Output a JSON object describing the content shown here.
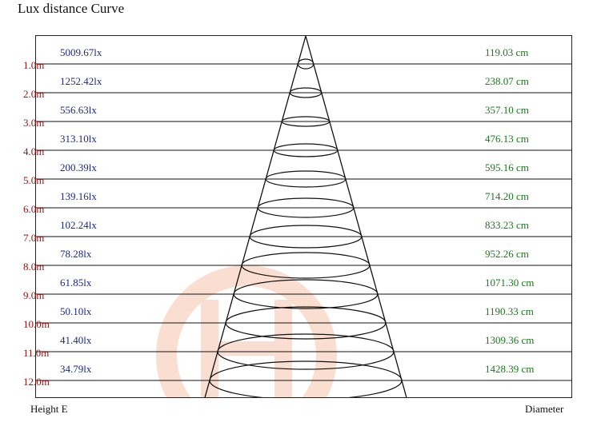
{
  "title": "Lux distance Curve",
  "footer": {
    "left_label": "Height  E",
    "right_label": "Diameter"
  },
  "colors": {
    "lux_text": "#1c2a86",
    "diameter_text": "#1b7a1b",
    "height_text": "#9c1010",
    "lines": "#111111",
    "watermark": "#f3b89a"
  },
  "chart_data": {
    "type": "table",
    "title": "Lux distance Curve",
    "xlabel": "Diameter",
    "ylabel": "Height  E",
    "grid": true,
    "rows": [
      {
        "height": "1.0m",
        "lux": "5009.67lx",
        "diameter": "119.03 cm"
      },
      {
        "height": "2.0m",
        "lux": "1252.42lx",
        "diameter": "238.07 cm"
      },
      {
        "height": "3.0m",
        "lux": "556.63lx",
        "diameter": "357.10 cm"
      },
      {
        "height": "4.0m",
        "lux": "313.10lx",
        "diameter": "476.13 cm"
      },
      {
        "height": "5.0m",
        "lux": "200.39lx",
        "diameter": "595.16 cm"
      },
      {
        "height": "6.0m",
        "lux": "139.16lx",
        "diameter": "714.20 cm"
      },
      {
        "height": "7.0m",
        "lux": "102.24lx",
        "diameter": "833.23 cm"
      },
      {
        "height": "8.0m",
        "lux": "78.28lx",
        "diameter": "952.26 cm"
      },
      {
        "height": "9.0m",
        "lux": "61.85lx",
        "diameter": "1071.30 cm"
      },
      {
        "height": "10.0m",
        "lux": "50.10lx",
        "diameter": "1190.33 cm"
      },
      {
        "height": "11.0m",
        "lux": "41.40lx",
        "diameter": "1309.36 cm"
      },
      {
        "height": "12.0m",
        "lux": "34.79lx",
        "diameter": "1428.39 cm"
      }
    ]
  }
}
